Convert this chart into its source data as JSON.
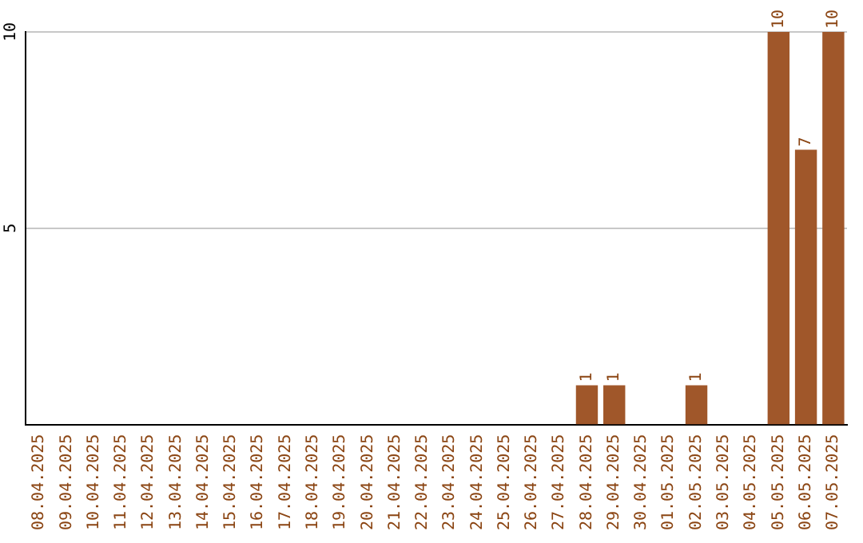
{
  "chart_data": {
    "type": "bar",
    "categories": [
      "08.04.2025",
      "09.04.2025",
      "10.04.2025",
      "11.04.2025",
      "12.04.2025",
      "13.04.2025",
      "14.04.2025",
      "15.04.2025",
      "16.04.2025",
      "17.04.2025",
      "18.04.2025",
      "19.04.2025",
      "20.04.2025",
      "21.04.2025",
      "22.04.2025",
      "23.04.2025",
      "24.04.2025",
      "25.04.2025",
      "26.04.2025",
      "27.04.2025",
      "28.04.2025",
      "29.04.2025",
      "30.04.2025",
      "01.05.2025",
      "02.05.2025",
      "03.05.2025",
      "04.05.2025",
      "05.05.2025",
      "06.05.2025",
      "07.05.2025"
    ],
    "values": [
      0,
      0,
      0,
      0,
      0,
      0,
      0,
      0,
      0,
      0,
      0,
      0,
      0,
      0,
      0,
      0,
      0,
      0,
      0,
      0,
      1,
      1,
      0,
      0,
      1,
      0,
      0,
      10,
      7,
      10
    ],
    "value_labels": [
      null,
      null,
      null,
      null,
      null,
      null,
      null,
      null,
      null,
      null,
      null,
      null,
      null,
      null,
      null,
      null,
      null,
      null,
      null,
      null,
      "1",
      "1",
      null,
      null,
      "1",
      null,
      null,
      "10",
      "7",
      "10"
    ],
    "color": "#a0572a",
    "ylim": [
      0,
      10
    ],
    "yticks": [
      5,
      10
    ],
    "grid": "y",
    "legend": false
  }
}
